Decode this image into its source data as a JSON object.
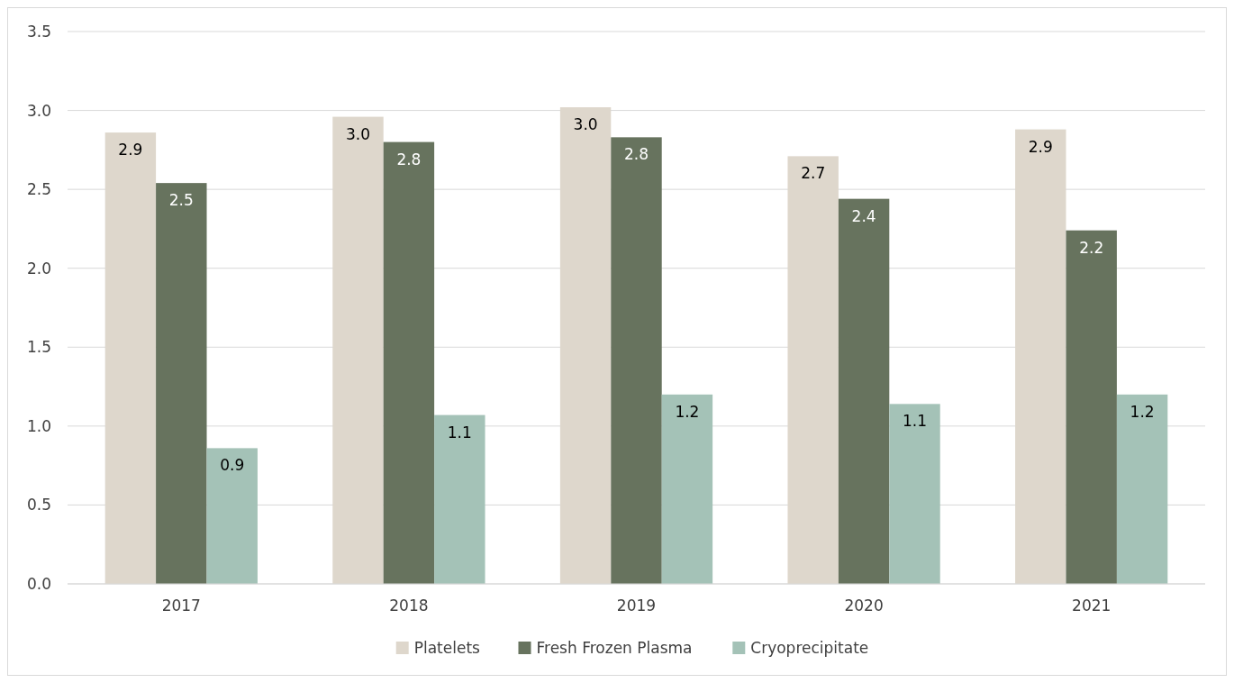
{
  "chart_data": {
    "type": "bar",
    "categories": [
      "2017",
      "2018",
      "2019",
      "2020",
      "2021"
    ],
    "series": [
      {
        "name": "Platelets",
        "color": "#ded7cc",
        "values": [
          2.86,
          2.96,
          3.02,
          2.71,
          2.88
        ],
        "value_labels": [
          "2.9",
          "3.0",
          "3.0",
          "2.7",
          "2.9"
        ]
      },
      {
        "name": "Fresh Frozen Plasma",
        "color": "#67735e",
        "values": [
          2.54,
          2.8,
          2.83,
          2.44,
          2.24
        ],
        "value_labels": [
          "2.5",
          "2.8",
          "2.8",
          "2.4",
          "2.2"
        ]
      },
      {
        "name": "Cryoprecipitate",
        "color": "#a4c2b7",
        "values": [
          0.86,
          1.07,
          1.2,
          1.14,
          1.2
        ],
        "value_labels": [
          "0.9",
          "1.1",
          "1.2",
          "1.1",
          "1.2"
        ]
      }
    ],
    "ylim": [
      0,
      3.5
    ],
    "yticks": [
      {
        "value": 0,
        "label": "0.0"
      },
      {
        "value": 0.5,
        "label": "0.5"
      },
      {
        "value": 1,
        "label": "1.0"
      },
      {
        "value": 1.5,
        "label": "1.5"
      },
      {
        "value": 2,
        "label": "2.0"
      },
      {
        "value": 2.5,
        "label": "2.5"
      },
      {
        "value": 3,
        "label": "3.0"
      },
      {
        "value": 3.5,
        "label": "3.5"
      }
    ],
    "grid": "y",
    "legend": "bottom"
  }
}
